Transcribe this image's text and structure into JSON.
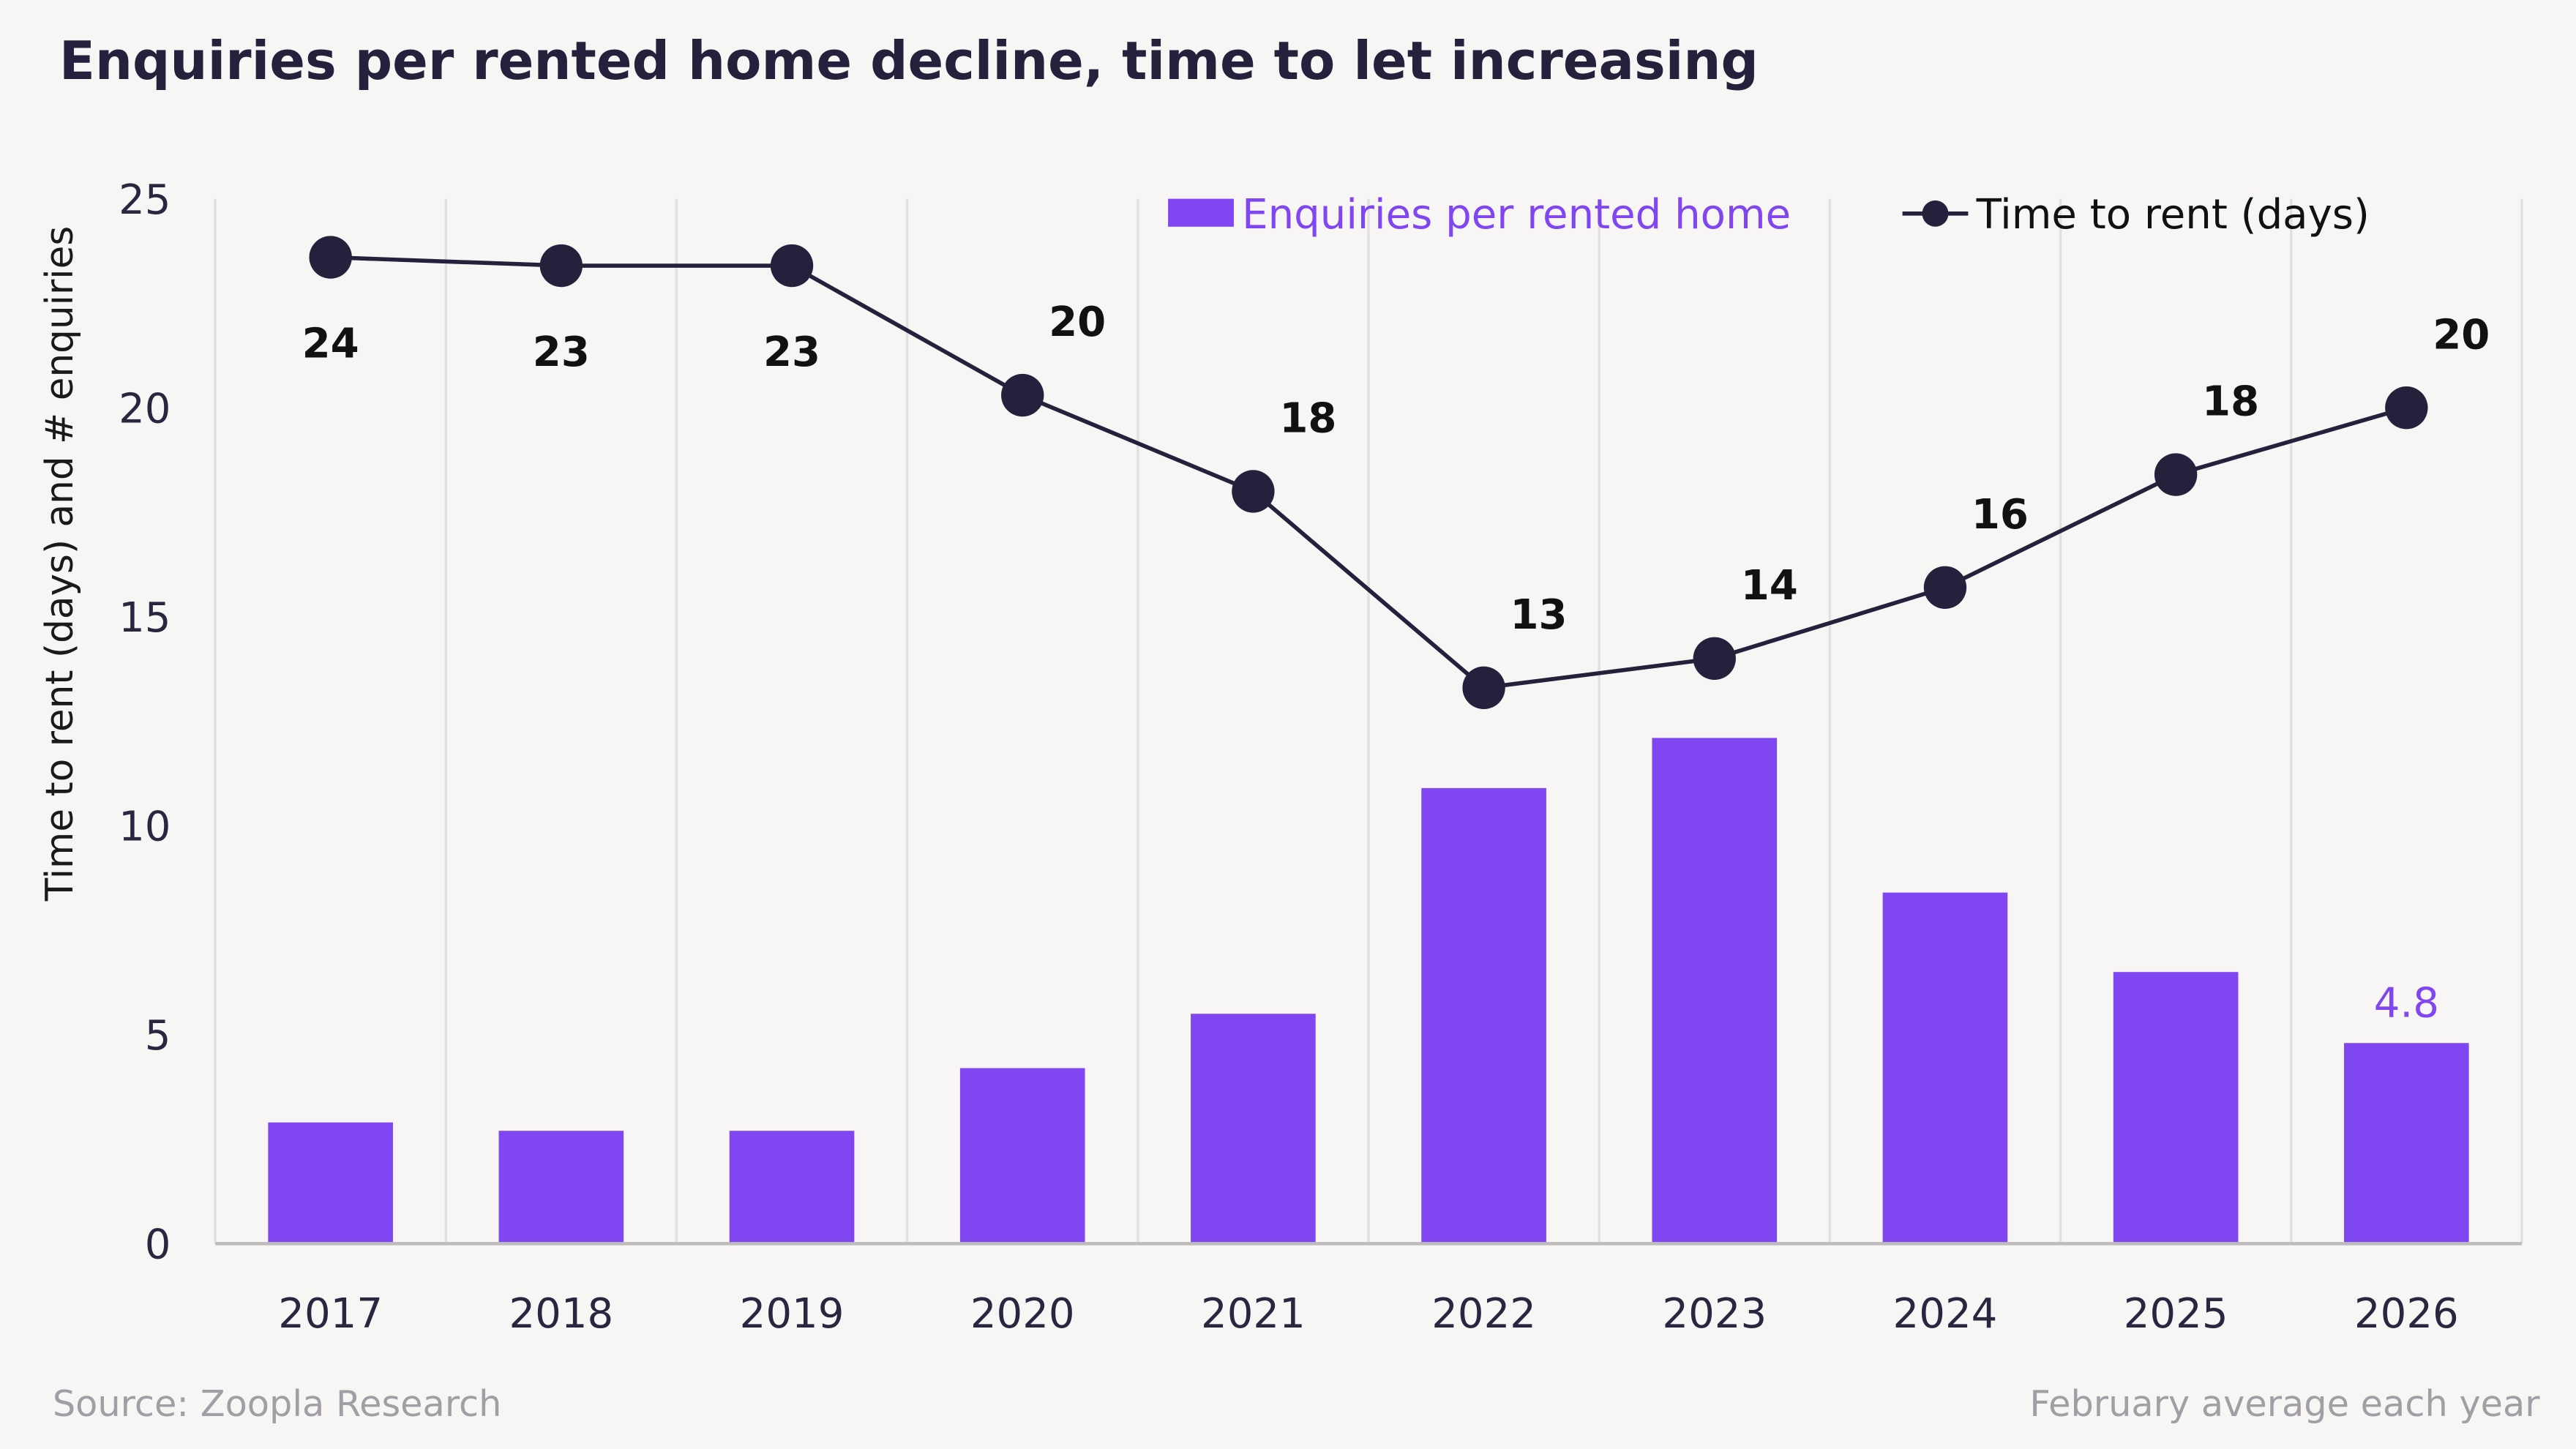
{
  "chart_data": {
    "type": "bar+line",
    "title": "Enquiries per rented home decline, time to let increasing",
    "ylabel": "Time to rent  (days) and # enquiries",
    "xlabel": "",
    "ylim": [
      0,
      25
    ],
    "yticks": [
      0,
      5,
      10,
      15,
      20,
      25
    ],
    "grid": "vertical",
    "legend_position": "top-right",
    "categories": [
      "2017",
      "2018",
      "2019",
      "2020",
      "2021",
      "2022",
      "2023",
      "2024",
      "2025",
      "2026"
    ],
    "series": [
      {
        "name": "Enquiries per rented home",
        "type": "bar",
        "color": "#8046f1",
        "values": [
          2.9,
          2.7,
          2.7,
          4.2,
          5.5,
          10.9,
          12.1,
          8.4,
          6.5,
          4.8
        ],
        "data_labels": [
          "",
          "",
          "",
          "",
          "",
          "",
          "",
          "",
          "",
          "4.8"
        ]
      },
      {
        "name": "Time to rent (days)",
        "type": "line",
        "color": "#27203d",
        "values": [
          23.6,
          23.4,
          23.4,
          20.3,
          18.0,
          13.3,
          14.0,
          15.7,
          18.4,
          20.0
        ],
        "data_labels": [
          "24",
          "23",
          "23",
          "20",
          "18",
          "13",
          "14",
          "16",
          "18",
          "20"
        ]
      }
    ],
    "source": "Source: Zoopla Research",
    "note": "February average each year"
  }
}
